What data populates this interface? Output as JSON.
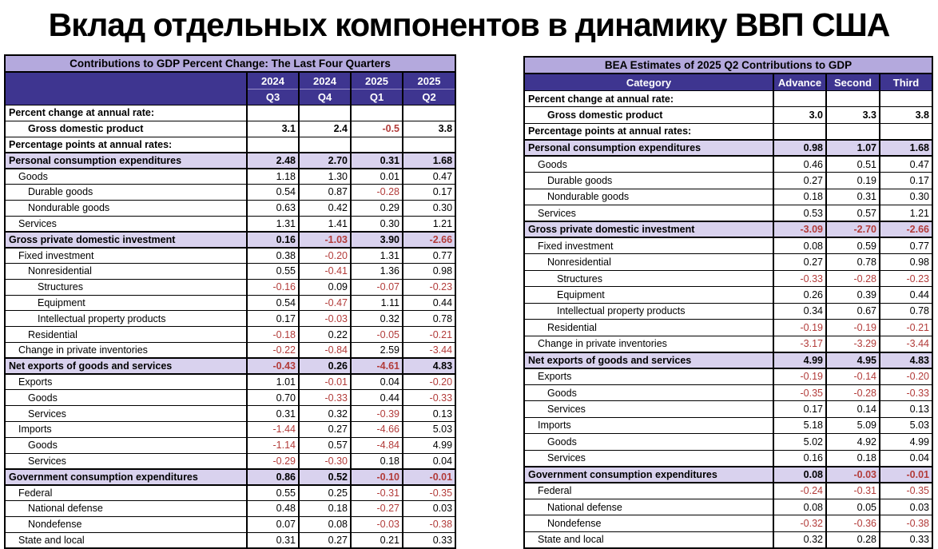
{
  "page_title": "Вклад отдельных компонентов в динамику ВВП США",
  "colors": {
    "header_bg": "#3E3590",
    "title_bar_bg": "#B4A9DD",
    "section_bg": "#D9D2EE",
    "negative": "#B23B39"
  },
  "chart_data": [
    {
      "type": "table",
      "title": "Contributions to GDP Percent Change: The Last Four Quarters",
      "col_headers": [
        {
          "year": "2024",
          "quarter": "Q3"
        },
        {
          "year": "2024",
          "quarter": "Q4"
        },
        {
          "year": "2025",
          "quarter": "Q1"
        },
        {
          "year": "2025",
          "quarter": "Q2"
        }
      ],
      "rows": [
        {
          "label": "Percent change at annual rate:",
          "indent": 0,
          "style": "caption",
          "values": [
            "",
            "",
            "",
            ""
          ]
        },
        {
          "label": "Gross domestic product",
          "indent": 2,
          "style": "gdp",
          "values": [
            "3.1",
            "2.4",
            "-0.5",
            "3.8"
          ]
        },
        {
          "label": "Percentage points at annual rates:",
          "indent": 0,
          "style": "caption",
          "values": [
            "",
            "",
            "",
            ""
          ]
        },
        {
          "label": "Personal consumption expenditures",
          "indent": 0,
          "style": "section",
          "values": [
            "2.48",
            "2.70",
            "0.31",
            "1.68"
          ]
        },
        {
          "label": "Goods",
          "indent": 1,
          "style": "plain",
          "values": [
            "1.18",
            "1.30",
            "0.01",
            "0.47"
          ]
        },
        {
          "label": "Durable goods",
          "indent": 2,
          "style": "plain",
          "values": [
            "0.54",
            "0.87",
            "-0.28",
            "0.17"
          ]
        },
        {
          "label": "Nondurable goods",
          "indent": 2,
          "style": "plain",
          "values": [
            "0.63",
            "0.42",
            "0.29",
            "0.30"
          ]
        },
        {
          "label": "Services",
          "indent": 1,
          "style": "plain",
          "values": [
            "1.31",
            "1.41",
            "0.30",
            "1.21"
          ]
        },
        {
          "label": "Gross private domestic investment",
          "indent": 0,
          "style": "section",
          "values": [
            "0.16",
            "-1.03",
            "3.90",
            "-2.66"
          ]
        },
        {
          "label": "Fixed investment",
          "indent": 1,
          "style": "plain",
          "values": [
            "0.38",
            "-0.20",
            "1.31",
            "0.77"
          ]
        },
        {
          "label": "Nonresidential",
          "indent": 2,
          "style": "plain",
          "values": [
            "0.55",
            "-0.41",
            "1.36",
            "0.98"
          ]
        },
        {
          "label": "Structures",
          "indent": 3,
          "style": "plain",
          "values": [
            "-0.16",
            "0.09",
            "-0.07",
            "-0.23"
          ]
        },
        {
          "label": "Equipment",
          "indent": 3,
          "style": "plain",
          "values": [
            "0.54",
            "-0.47",
            "1.11",
            "0.44"
          ]
        },
        {
          "label": "Intellectual property products",
          "indent": 3,
          "style": "plain",
          "values": [
            "0.17",
            "-0.03",
            "0.32",
            "0.78"
          ]
        },
        {
          "label": "Residential",
          "indent": 2,
          "style": "plain",
          "values": [
            "-0.18",
            "0.22",
            "-0.05",
            "-0.21"
          ]
        },
        {
          "label": "Change in private inventories",
          "indent": 1,
          "style": "plain",
          "values": [
            "-0.22",
            "-0.84",
            "2.59",
            "-3.44"
          ]
        },
        {
          "label": "Net exports of goods and services",
          "indent": 0,
          "style": "section",
          "values": [
            "-0.43",
            "0.26",
            "-4.61",
            "4.83"
          ]
        },
        {
          "label": "Exports",
          "indent": 1,
          "style": "plain",
          "values": [
            "1.01",
            "-0.01",
            "0.04",
            "-0.20"
          ]
        },
        {
          "label": "Goods",
          "indent": 2,
          "style": "plain",
          "values": [
            "0.70",
            "-0.33",
            "0.44",
            "-0.33"
          ]
        },
        {
          "label": "Services",
          "indent": 2,
          "style": "plain",
          "values": [
            "0.31",
            "0.32",
            "-0.39",
            "0.13"
          ]
        },
        {
          "label": "Imports",
          "indent": 1,
          "style": "plain",
          "values": [
            "-1.44",
            "0.27",
            "-4.66",
            "5.03"
          ]
        },
        {
          "label": "Goods",
          "indent": 2,
          "style": "plain",
          "values": [
            "-1.14",
            "0.57",
            "-4.84",
            "4.99"
          ]
        },
        {
          "label": "Services",
          "indent": 2,
          "style": "plain",
          "values": [
            "-0.29",
            "-0.30",
            "0.18",
            "0.04"
          ]
        },
        {
          "label": "Government consumption expenditures",
          "indent": 0,
          "style": "section",
          "values": [
            "0.86",
            "0.52",
            "-0.10",
            "-0.01"
          ]
        },
        {
          "label": "Federal",
          "indent": 1,
          "style": "plain",
          "values": [
            "0.55",
            "0.25",
            "-0.31",
            "-0.35"
          ]
        },
        {
          "label": "National defense",
          "indent": 2,
          "style": "plain",
          "values": [
            "0.48",
            "0.18",
            "-0.27",
            "0.03"
          ]
        },
        {
          "label": "Nondefense",
          "indent": 2,
          "style": "plain",
          "values": [
            "0.07",
            "0.08",
            "-0.03",
            "-0.38"
          ]
        },
        {
          "label": "State and local",
          "indent": 1,
          "style": "plain",
          "values": [
            "0.31",
            "0.27",
            "0.21",
            "0.33"
          ]
        }
      ]
    },
    {
      "type": "table",
      "title": "BEA Estimates of 2025 Q2 Contributions to GDP",
      "category_header": "Category",
      "col_headers": [
        "Advance",
        "Second",
        "Third"
      ],
      "rows": [
        {
          "label": "Percent change at annual rate:",
          "indent": 0,
          "style": "caption",
          "values": [
            "",
            "",
            ""
          ]
        },
        {
          "label": "Gross domestic product",
          "indent": 2,
          "style": "gdp",
          "values": [
            "3.0",
            "3.3",
            "3.8"
          ]
        },
        {
          "label": "Percentage points at annual rates:",
          "indent": 0,
          "style": "caption",
          "values": [
            "",
            "",
            ""
          ]
        },
        {
          "label": "Personal consumption expenditures",
          "indent": 0,
          "style": "section",
          "values": [
            "0.98",
            "1.07",
            "1.68"
          ]
        },
        {
          "label": "Goods",
          "indent": 1,
          "style": "plain",
          "values": [
            "0.46",
            "0.51",
            "0.47"
          ]
        },
        {
          "label": "Durable goods",
          "indent": 2,
          "style": "plain",
          "values": [
            "0.27",
            "0.19",
            "0.17"
          ]
        },
        {
          "label": "Nondurable goods",
          "indent": 2,
          "style": "plain",
          "values": [
            "0.18",
            "0.31",
            "0.30"
          ]
        },
        {
          "label": "Services",
          "indent": 1,
          "style": "plain",
          "values": [
            "0.53",
            "0.57",
            "1.21"
          ]
        },
        {
          "label": "Gross private domestic investment",
          "indent": 0,
          "style": "section",
          "values": [
            "-3.09",
            "-2.70",
            "-2.66"
          ]
        },
        {
          "label": "Fixed investment",
          "indent": 1,
          "style": "plain",
          "values": [
            "0.08",
            "0.59",
            "0.77"
          ]
        },
        {
          "label": "Nonresidential",
          "indent": 2,
          "style": "plain",
          "values": [
            "0.27",
            "0.78",
            "0.98"
          ]
        },
        {
          "label": "Structures",
          "indent": 3,
          "style": "plain",
          "values": [
            "-0.33",
            "-0.28",
            "-0.23"
          ]
        },
        {
          "label": "Equipment",
          "indent": 3,
          "style": "plain",
          "values": [
            "0.26",
            "0.39",
            "0.44"
          ]
        },
        {
          "label": "Intellectual property products",
          "indent": 3,
          "style": "plain",
          "values": [
            "0.34",
            "0.67",
            "0.78"
          ]
        },
        {
          "label": "Residential",
          "indent": 2,
          "style": "plain",
          "values": [
            "-0.19",
            "-0.19",
            "-0.21"
          ]
        },
        {
          "label": "Change in private inventories",
          "indent": 1,
          "style": "plain",
          "values": [
            "-3.17",
            "-3.29",
            "-3.44"
          ]
        },
        {
          "label": "Net exports of goods and services",
          "indent": 0,
          "style": "section",
          "values": [
            "4.99",
            "4.95",
            "4.83"
          ]
        },
        {
          "label": "Exports",
          "indent": 1,
          "style": "plain",
          "values": [
            "-0.19",
            "-0.14",
            "-0.20"
          ]
        },
        {
          "label": "Goods",
          "indent": 2,
          "style": "plain",
          "values": [
            "-0.35",
            "-0.28",
            "-0.33"
          ]
        },
        {
          "label": "Services",
          "indent": 2,
          "style": "plain",
          "values": [
            "0.17",
            "0.14",
            "0.13"
          ]
        },
        {
          "label": "Imports",
          "indent": 1,
          "style": "plain",
          "values": [
            "5.18",
            "5.09",
            "5.03"
          ]
        },
        {
          "label": "Goods",
          "indent": 2,
          "style": "plain",
          "values": [
            "5.02",
            "4.92",
            "4.99"
          ]
        },
        {
          "label": "Services",
          "indent": 2,
          "style": "plain",
          "values": [
            "0.16",
            "0.18",
            "0.04"
          ]
        },
        {
          "label": "Government consumption expenditures",
          "indent": 0,
          "style": "section",
          "values": [
            "0.08",
            "-0.03",
            "-0.01"
          ]
        },
        {
          "label": "Federal",
          "indent": 1,
          "style": "plain",
          "values": [
            "-0.24",
            "-0.31",
            "-0.35"
          ]
        },
        {
          "label": "National defense",
          "indent": 2,
          "style": "plain",
          "values": [
            "0.08",
            "0.05",
            "0.03"
          ]
        },
        {
          "label": "Nondefense",
          "indent": 2,
          "style": "plain",
          "values": [
            "-0.32",
            "-0.36",
            "-0.38"
          ]
        },
        {
          "label": "State and local",
          "indent": 1,
          "style": "plain",
          "values": [
            "0.32",
            "0.28",
            "0.33"
          ]
        }
      ]
    }
  ]
}
